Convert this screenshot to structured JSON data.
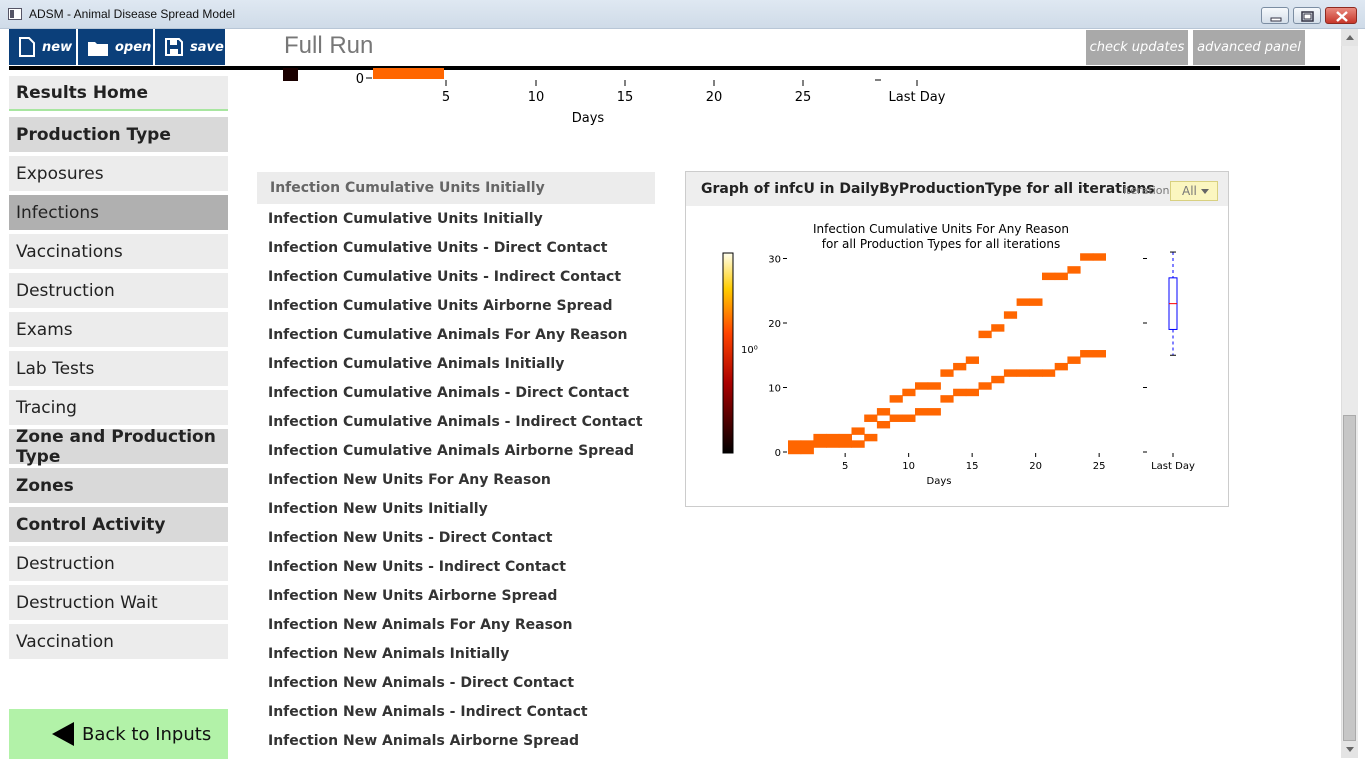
{
  "window": {
    "title": "ADSM - Animal Disease Spread Model"
  },
  "toolbar": {
    "new_label": "new",
    "open_label": "open",
    "save_label": "save",
    "check_updates_label": "check updates",
    "advanced_panel_label": "advanced panel"
  },
  "page": {
    "title": "Full Run"
  },
  "sidebar": {
    "home": "Results Home",
    "items": [
      {
        "label": "Production Type",
        "kind": "head"
      },
      {
        "label": "Exposures",
        "kind": "plain"
      },
      {
        "label": "Infections",
        "kind": "active"
      },
      {
        "label": "Vaccinations",
        "kind": "plain"
      },
      {
        "label": "Destruction",
        "kind": "plain"
      },
      {
        "label": "Exams",
        "kind": "plain"
      },
      {
        "label": "Lab Tests",
        "kind": "plain"
      },
      {
        "label": "Tracing",
        "kind": "plain"
      },
      {
        "label": "Zone and Production Type",
        "kind": "head"
      },
      {
        "label": "Zones",
        "kind": "head"
      },
      {
        "label": "Control Activity",
        "kind": "head"
      },
      {
        "label": "Destruction",
        "kind": "plain"
      },
      {
        "label": "Destruction Wait",
        "kind": "plain"
      },
      {
        "label": "Vaccination",
        "kind": "plain"
      }
    ],
    "back_label": "Back to Inputs"
  },
  "top_axis": {
    "ticks": [
      "5",
      "10",
      "15",
      "20",
      "25",
      "Last Day"
    ],
    "zero_label": "0",
    "xlabel": "Days"
  },
  "list": {
    "header": "Infection Cumulative Units Initially",
    "items": [
      "Infection Cumulative Units Initially",
      "Infection Cumulative Units - Direct Contact",
      "Infection Cumulative Units - Indirect Contact",
      "Infection Cumulative Units Airborne Spread",
      "Infection Cumulative Animals For Any Reason",
      "Infection Cumulative Animals Initially",
      "Infection Cumulative Animals - Direct Contact",
      "Infection Cumulative Animals - Indirect Contact",
      "Infection Cumulative Animals Airborne Spread",
      "Infection New Units For Any Reason",
      "Infection New Units Initially",
      "Infection New Units - Direct Contact",
      "Infection New Units - Indirect Contact",
      "Infection New Units Airborne Spread",
      "Infection New Animals For Any Reason",
      "Infection New Animals Initially",
      "Infection New Animals - Direct Contact",
      "Infection New Animals - Indirect Contact",
      "Infection New Animals Airborne Spread"
    ]
  },
  "graph": {
    "header": "Graph of infcU in DailyByProductionType for all iterations",
    "iteration_label": "iteration",
    "iteration_value": "All",
    "colorbar_label": "10⁰"
  },
  "chart_data": {
    "type": "heatmap",
    "title": "Infection Cumulative Units For Any Reason",
    "subtitle": "for all Production Types for all iterations",
    "xlabel": "Days",
    "x_ticks": [
      5,
      10,
      15,
      20,
      25
    ],
    "y_ticks": [
      0,
      10,
      20,
      30
    ],
    "xlim": [
      1,
      27
    ],
    "ylim": [
      0,
      31
    ],
    "series": [
      {
        "points": [
          [
            1,
            1
          ],
          [
            2,
            1
          ],
          [
            3,
            2
          ],
          [
            4,
            2
          ],
          [
            5,
            2
          ],
          [
            6,
            3
          ],
          [
            7,
            5
          ],
          [
            8,
            6
          ],
          [
            9,
            8
          ],
          [
            10,
            9
          ],
          [
            11,
            10
          ],
          [
            12,
            10
          ],
          [
            13,
            12
          ],
          [
            14,
            13
          ],
          [
            15,
            14
          ],
          [
            16,
            18
          ],
          [
            17,
            19
          ],
          [
            18,
            21
          ],
          [
            19,
            23
          ],
          [
            20,
            23
          ],
          [
            21,
            27
          ],
          [
            22,
            27
          ],
          [
            23,
            28
          ],
          [
            24,
            30
          ],
          [
            25,
            30
          ]
        ]
      },
      {
        "points": [
          [
            1,
            0
          ],
          [
            2,
            0
          ],
          [
            3,
            1
          ],
          [
            4,
            1
          ],
          [
            5,
            1
          ],
          [
            6,
            1
          ],
          [
            7,
            2
          ],
          [
            8,
            4
          ],
          [
            9,
            5
          ],
          [
            10,
            5
          ],
          [
            11,
            6
          ],
          [
            12,
            6
          ],
          [
            13,
            8
          ],
          [
            14,
            9
          ],
          [
            15,
            9
          ],
          [
            16,
            10
          ],
          [
            17,
            11
          ],
          [
            18,
            12
          ],
          [
            19,
            12
          ],
          [
            20,
            12
          ],
          [
            21,
            12
          ],
          [
            22,
            13
          ],
          [
            23,
            14
          ],
          [
            24,
            15
          ],
          [
            25,
            15
          ]
        ]
      }
    ],
    "last_day_box": {
      "label": "Last Day",
      "min": 15,
      "q1": 19,
      "median": 23,
      "q3": 27,
      "max": 31
    },
    "colors": {
      "cell": "#ff6600",
      "box": "#0000ff",
      "median": "#ff0000"
    }
  },
  "top_chart_data": {
    "type": "heatmap",
    "xlabel": "Days",
    "x_ticks": [
      "5",
      "10",
      "15",
      "20",
      "25",
      "Last Day"
    ]
  }
}
